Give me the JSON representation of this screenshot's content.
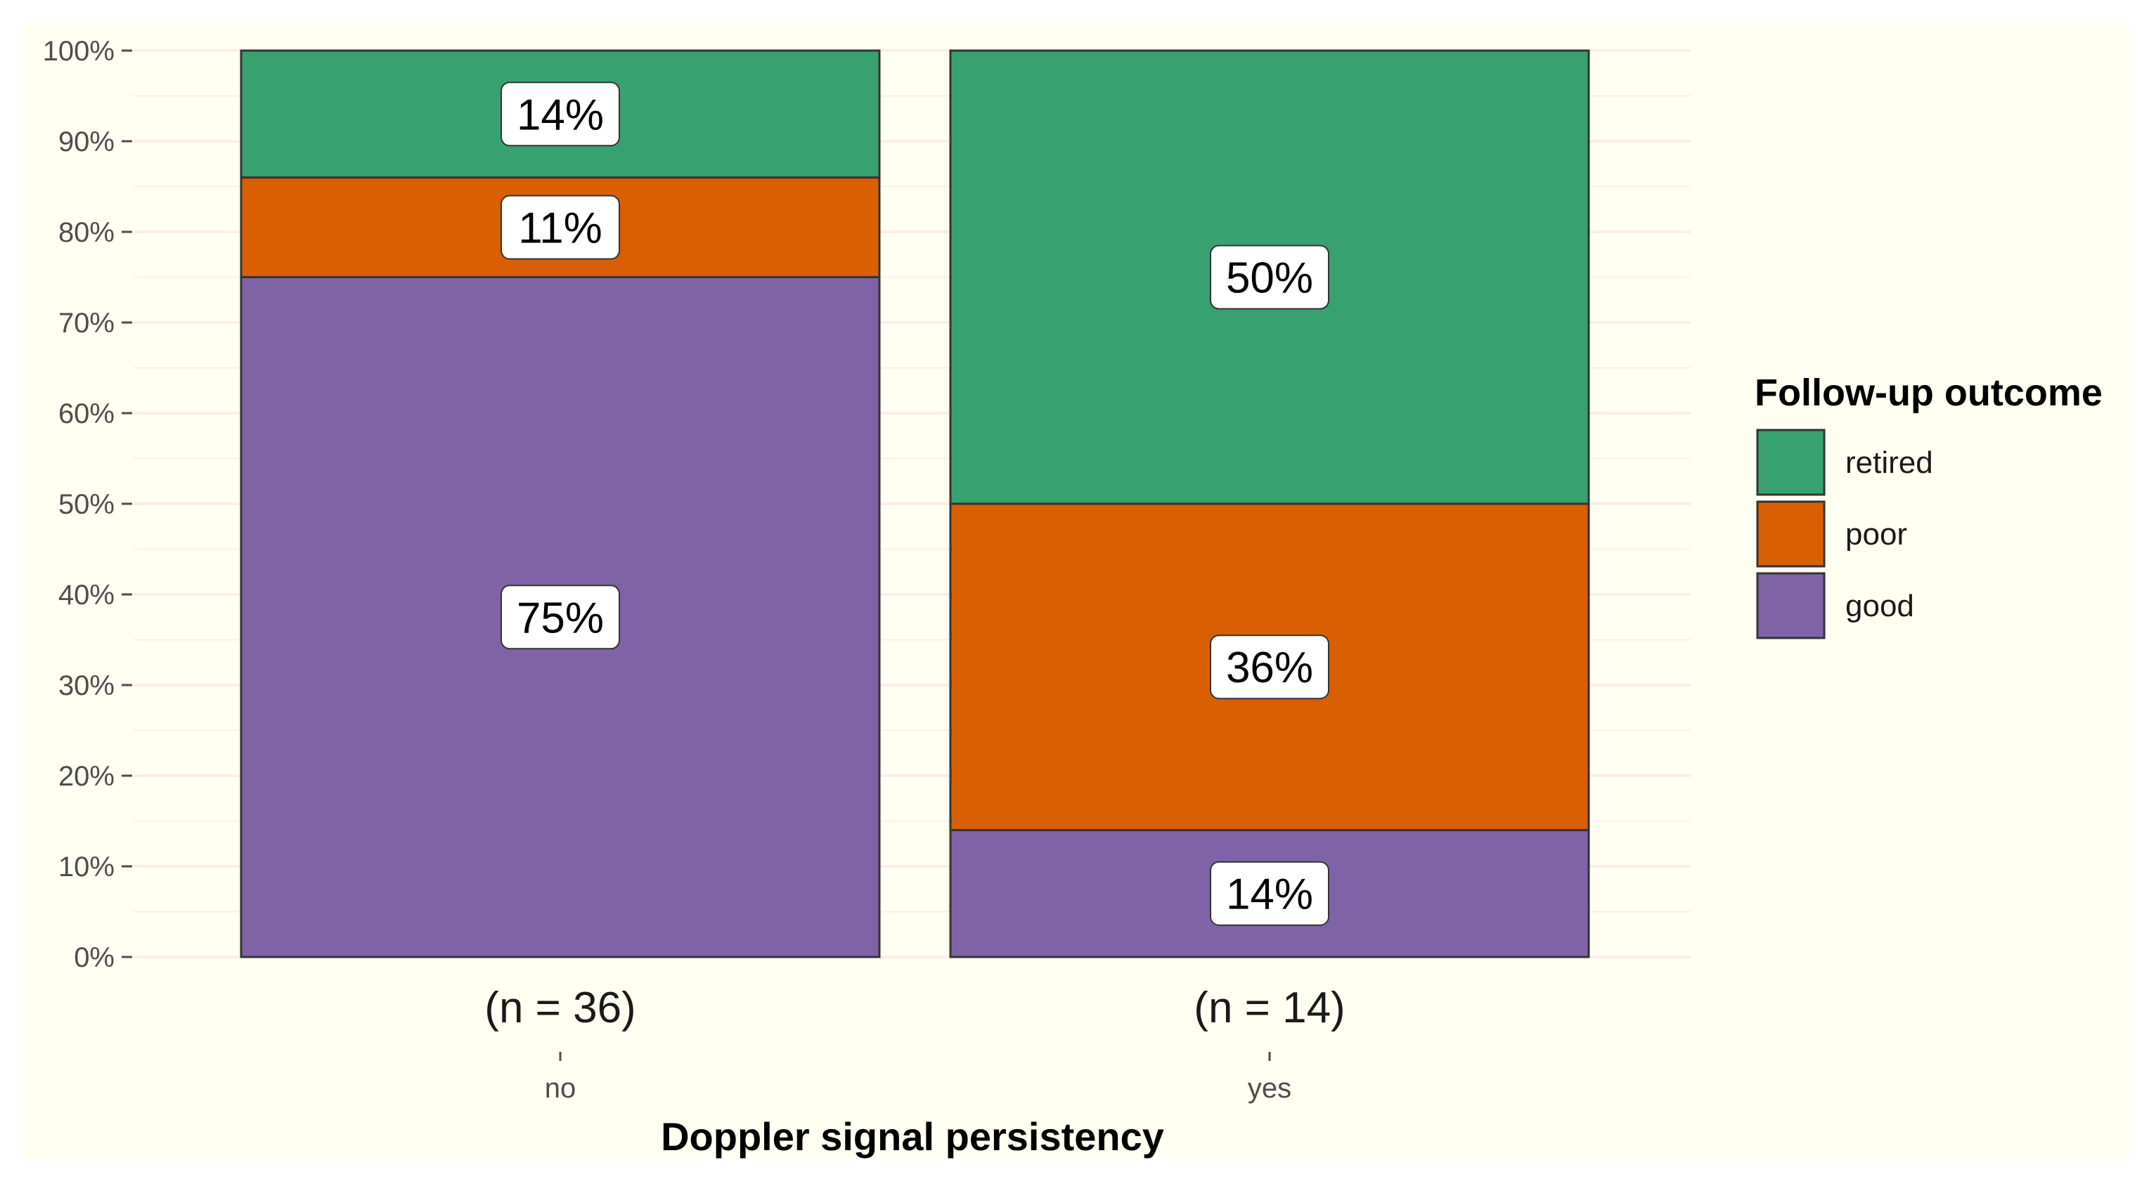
{
  "chart_data": {
    "type": "bar",
    "stacked": true,
    "categories": [
      "no",
      "yes"
    ],
    "category_annotations": [
      "(n = 36)",
      "(n = 14)"
    ],
    "series": [
      {
        "name": "good",
        "values": [
          75,
          14
        ]
      },
      {
        "name": "poor",
        "values": [
          11,
          36
        ]
      },
      {
        "name": "retired",
        "values": [
          14,
          50
        ]
      }
    ],
    "data_labels": [
      [
        "75%",
        "14%"
      ],
      [
        "11%",
        "36%"
      ],
      [
        "14%",
        "50%"
      ]
    ],
    "xlabel": "Doppler signal persistency",
    "ylabel": "",
    "ylim": [
      0,
      100
    ],
    "yticks": [
      "0%",
      "10%",
      "20%",
      "30%",
      "40%",
      "50%",
      "60%",
      "70%",
      "80%",
      "90%",
      "100%"
    ],
    "legend": {
      "title": "Follow-up outcome",
      "position": "right",
      "entries": [
        "retired",
        "poor",
        "good"
      ]
    },
    "grid": true
  },
  "colors": {
    "panel_background": "#fffff2",
    "gridline": "#fbeee6",
    "good": "#7f63a6",
    "poor": "#d95f02",
    "retired": "#38a170",
    "bar_border": "#333333"
  }
}
